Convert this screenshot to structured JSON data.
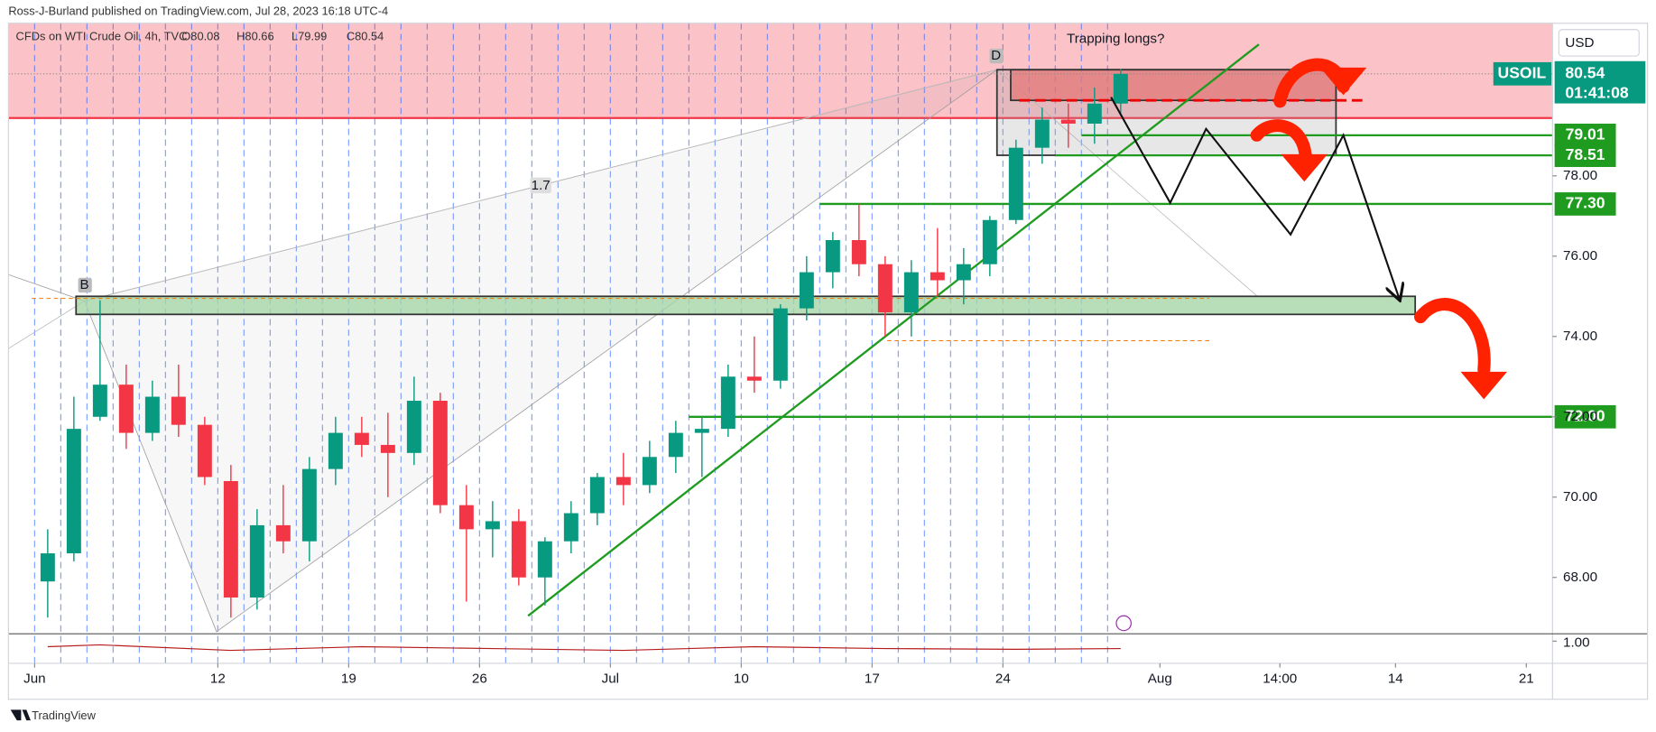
{
  "header": "Ross-J-Burland published on TradingView.com, Jul 28, 2023 16:18 UTC-4",
  "footer": "TradingView",
  "chart_data": [
    {
      "type": "candlestick",
      "title": "CFDs on WTI Crude Oil, 4h, TVC",
      "legend_values": [
        80.08,
        80.66,
        79.99,
        80.54
      ],
      "legend_value_labels": [
        "O80.08",
        "H80.66",
        "L79.99",
        "C80.54"
      ],
      "symbol": "USOIL",
      "currency": "USD",
      "last_price": 80.54,
      "countdown": "01:41:08",
      "up_color": "#089981",
      "down_color": "#f23645",
      "x": [
        "2023-06-01",
        "2023-06-02",
        "2023-06-05",
        "2023-06-06",
        "2023-06-07",
        "2023-06-08",
        "2023-06-09",
        "2023-06-12",
        "2023-06-13",
        "2023-06-14",
        "2023-06-15",
        "2023-06-16",
        "2023-06-19",
        "2023-06-20",
        "2023-06-21",
        "2023-06-22",
        "2023-06-23",
        "2023-06-26",
        "2023-06-27",
        "2023-06-28",
        "2023-06-29",
        "2023-06-30",
        "2023-07-03",
        "2023-07-04",
        "2023-07-05",
        "2023-07-06",
        "2023-07-07",
        "2023-07-10",
        "2023-07-11",
        "2023-07-12",
        "2023-07-13",
        "2023-07-14",
        "2023-07-17",
        "2023-07-18",
        "2023-07-19",
        "2023-07-20",
        "2023-07-21",
        "2023-07-24",
        "2023-07-25",
        "2023-07-26",
        "2023-07-27",
        "2023-07-28"
      ],
      "open": [
        67.9,
        68.6,
        72.0,
        72.8,
        71.6,
        72.5,
        71.8,
        70.4,
        67.5,
        69.3,
        68.9,
        70.7,
        71.6,
        71.3,
        71.1,
        72.4,
        69.8,
        69.2,
        69.4,
        68.0,
        68.9,
        69.6,
        70.5,
        70.3,
        71.0,
        71.6,
        71.7,
        73.0,
        72.9,
        74.7,
        75.6,
        76.4,
        75.8,
        74.6,
        75.6,
        75.4,
        75.8,
        76.9,
        78.7,
        79.4,
        79.3,
        79.8
      ],
      "high": [
        69.2,
        72.5,
        74.9,
        73.3,
        72.9,
        73.3,
        72.0,
        70.8,
        69.7,
        70.3,
        71.0,
        72.0,
        72.0,
        72.1,
        73.0,
        72.6,
        70.3,
        69.9,
        69.7,
        69.0,
        69.9,
        70.6,
        71.1,
        71.4,
        71.9,
        72.0,
        73.3,
        74.0,
        74.8,
        76.0,
        76.6,
        77.3,
        76.0,
        75.9,
        76.7,
        76.2,
        77.0,
        78.9,
        79.7,
        79.8,
        80.2,
        80.66
      ],
      "low": [
        67.0,
        68.4,
        71.9,
        71.2,
        71.4,
        71.5,
        70.3,
        67.0,
        67.2,
        68.6,
        68.4,
        70.3,
        71.0,
        70.0,
        70.8,
        69.6,
        67.4,
        68.5,
        67.8,
        67.3,
        68.6,
        69.3,
        69.8,
        70.1,
        70.6,
        70.5,
        71.5,
        72.6,
        72.7,
        74.4,
        75.2,
        75.5,
        74.0,
        74.0,
        75.0,
        74.8,
        75.5,
        76.8,
        78.3,
        78.7,
        78.8,
        79.5
      ],
      "close": [
        68.6,
        71.7,
        72.8,
        71.6,
        72.5,
        71.8,
        70.5,
        67.5,
        69.3,
        68.9,
        70.7,
        71.6,
        71.3,
        71.1,
        72.4,
        69.8,
        69.2,
        69.4,
        68.0,
        68.9,
        69.6,
        70.5,
        70.3,
        71.0,
        71.6,
        71.7,
        73.0,
        72.9,
        74.7,
        75.6,
        76.4,
        75.8,
        74.6,
        75.6,
        75.4,
        75.8,
        76.9,
        78.7,
        79.4,
        79.3,
        79.8,
        80.54
      ],
      "xlim": [
        "2023-05-31",
        "2023-08-22"
      ],
      "xticks": [
        {
          "value": "2023-06-01",
          "label": "Jun"
        },
        {
          "value": "2023-06-12",
          "label": "12"
        },
        {
          "value": "2023-06-19",
          "label": "19"
        },
        {
          "value": "2023-06-26",
          "label": "26"
        },
        {
          "value": "2023-07-03",
          "label": "Jul"
        },
        {
          "value": "2023-07-10",
          "label": "10"
        },
        {
          "value": "2023-07-17",
          "label": "17"
        },
        {
          "value": "2023-07-24",
          "label": "24"
        },
        {
          "value": "2023-08-01",
          "label": "Aug"
        },
        {
          "value": "2023-08-07T14:00",
          "label": "14:00"
        },
        {
          "value": "2023-08-14",
          "label": "14"
        },
        {
          "value": "2023-08-21",
          "label": "21"
        }
      ],
      "ylim": [
        66.65,
        81.8
      ],
      "yticks": [
        {
          "value": 68,
          "label": "68.00"
        },
        {
          "value": 70,
          "label": "70.00"
        },
        {
          "value": 72,
          "label": "72.00"
        },
        {
          "value": 74,
          "label": "74.00"
        },
        {
          "value": 76,
          "label": "76.00"
        },
        {
          "value": 78,
          "label": "78.00"
        }
      ],
      "levels": [
        {
          "value": 79.01,
          "label": "79.01",
          "start": "2023-07-27"
        },
        {
          "value": 78.51,
          "label": "78.51",
          "start": "2023-07-26"
        },
        {
          "value": 77.3,
          "label": "77.30",
          "start": "2023-07-13"
        },
        {
          "value": 72,
          "label": "72.00",
          "start": "2023-07-06"
        }
      ],
      "level_color": "#1f9b1f",
      "resistance": 79.44,
      "support_zone": [
        74.55,
        75.0
      ],
      "annotations": [
        "Trapping longs?",
        "1.7",
        "B",
        "D"
      ]
    },
    {
      "type": "line",
      "x": [
        "2023-06-01",
        "2023-06-05",
        "2023-06-12",
        "2023-06-19",
        "2023-06-26",
        "2023-07-03",
        "2023-07-10",
        "2023-07-17",
        "2023-07-24",
        "2023-07-28"
      ],
      "values": [
        0.985,
        0.99,
        0.975,
        0.985,
        0.98,
        0.975,
        0.985,
        0.98,
        0.978,
        0.98
      ],
      "color": "#b71c1c",
      "ylim": [
        0.94,
        1.02
      ],
      "yticks": [
        {
          "value": 1,
          "label": "1.00"
        }
      ]
    }
  ]
}
